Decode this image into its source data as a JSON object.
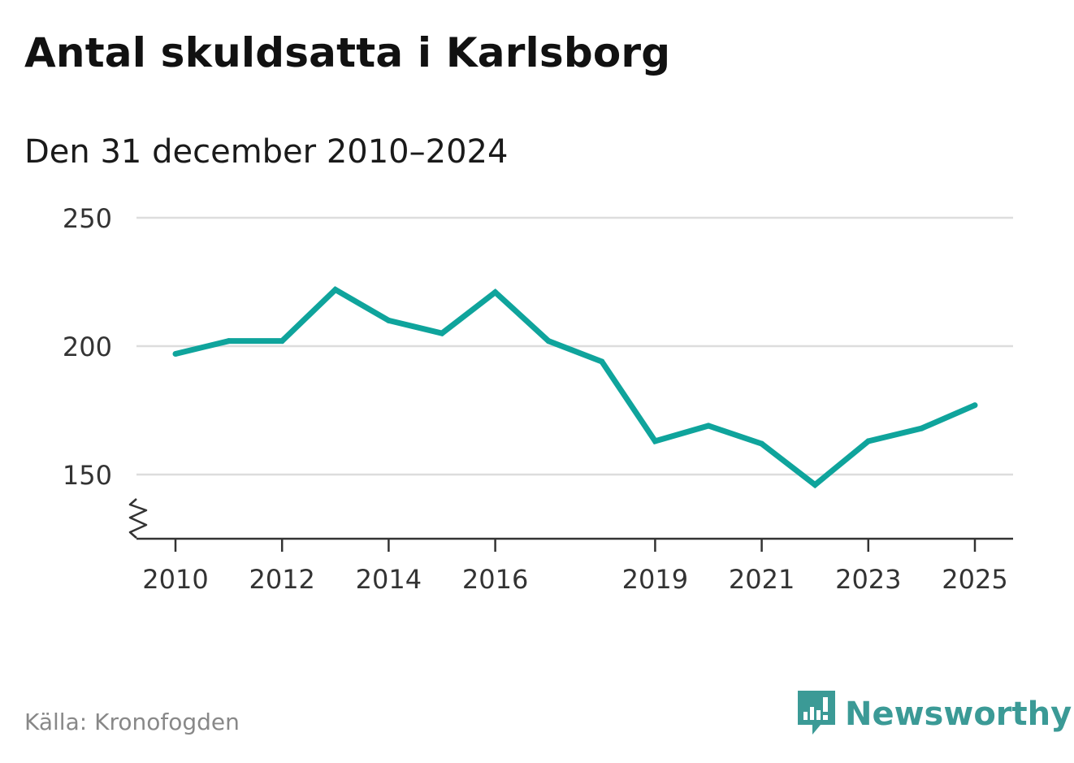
{
  "title": "Antal skuldsatta i Karlsborg",
  "subtitle": "Den 31 december 2010–2024",
  "source": "Källa: Kronofogden",
  "brand": {
    "name": "Newsworthy",
    "icon": "newsworthy-logo-icon",
    "color": "#3b9a96"
  },
  "colors": {
    "line": "#0fa49c",
    "grid": "#dddddd",
    "axis": "#333333"
  },
  "chart_data": {
    "type": "line",
    "title": "Antal skuldsatta i Karlsborg",
    "subtitle": "Den 31 december 2010–2024",
    "xlabel": "",
    "ylabel": "",
    "x": [
      2010,
      2011,
      2012,
      2013,
      2014,
      2015,
      2016,
      2017,
      2018,
      2019,
      2020,
      2021,
      2022,
      2023,
      2024,
      2025
    ],
    "series": [
      {
        "values": [
          197,
          202,
          202,
          222,
          210,
          205,
          221,
          202,
          194,
          163,
          169,
          162,
          146,
          163,
          168,
          177
        ]
      }
    ],
    "x_ticks": [
      "2010",
      "2012",
      "2014",
      "2016",
      "2019",
      "2021",
      "2023",
      "2025"
    ],
    "y_ticks": [
      "150",
      "200",
      "250"
    ],
    "ylim": [
      125,
      250
    ],
    "xlim": [
      2010,
      2025
    ],
    "axis_break": true,
    "grid": true,
    "legend": "none"
  }
}
